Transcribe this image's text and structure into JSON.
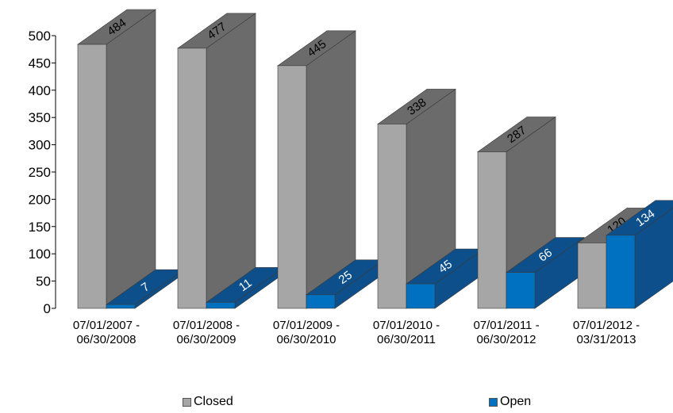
{
  "chart_data": {
    "type": "bar",
    "categories": [
      [
        "07/01/2007 -",
        "06/30/2008"
      ],
      [
        "07/01/2008 -",
        "06/30/2009"
      ],
      [
        "07/01/2009 -",
        "06/30/2010"
      ],
      [
        "07/01/2010 -",
        "06/30/2011"
      ],
      [
        "07/01/2011 -",
        "06/30/2012"
      ],
      [
        "07/01/2012 -",
        "03/31/2013"
      ]
    ],
    "series": [
      {
        "name": "Closed",
        "values": [
          484,
          477,
          445,
          338,
          287,
          120
        ],
        "color": "#a6a6a6",
        "side_color": "#6b6b6b"
      },
      {
        "name": "Open",
        "values": [
          7,
          11,
          25,
          45,
          66,
          134
        ],
        "color": "#0070c0",
        "side_color": "#0d4f8a"
      }
    ],
    "ylim": [
      0,
      500
    ],
    "yticks": [
      "0",
      "50",
      "100",
      "150",
      "200",
      "250",
      "300",
      "350",
      "400",
      "450",
      "500"
    ],
    "grid": false,
    "legend_position": "bottom",
    "style": "3d"
  }
}
